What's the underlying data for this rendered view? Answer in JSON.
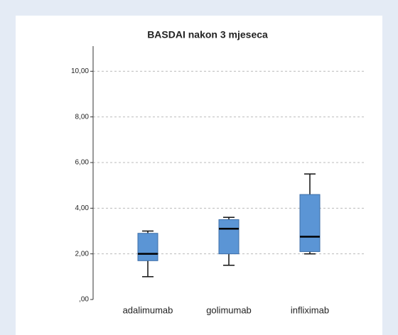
{
  "chart_data": {
    "type": "box",
    "title": "BASDAI nakon 3 mjeseca",
    "categories": [
      "adalimumab",
      "golimumab",
      "infliximab"
    ],
    "color": "#5b95d5",
    "boxes": [
      {
        "whisker_low": 1.0,
        "q1": 1.7,
        "median": 2.0,
        "q3": 2.9,
        "whisker_high": 3.0
      },
      {
        "whisker_low": 1.5,
        "q1": 2.0,
        "median": 3.1,
        "q3": 3.5,
        "whisker_high": 3.6
      },
      {
        "whisker_low": 2.0,
        "q1": 2.1,
        "median": 2.75,
        "q3": 4.6,
        "whisker_high": 5.5
      }
    ],
    "ylim": [
      0,
      11.1
    ],
    "yticks": [
      {
        "value": 0,
        "label": ",00"
      },
      {
        "value": 2,
        "label": "2,00"
      },
      {
        "value": 4,
        "label": "4,00"
      },
      {
        "value": 6,
        "label": "6,00"
      },
      {
        "value": 8,
        "label": "8,00"
      },
      {
        "value": 10,
        "label": "10,00"
      }
    ],
    "grid": true
  }
}
